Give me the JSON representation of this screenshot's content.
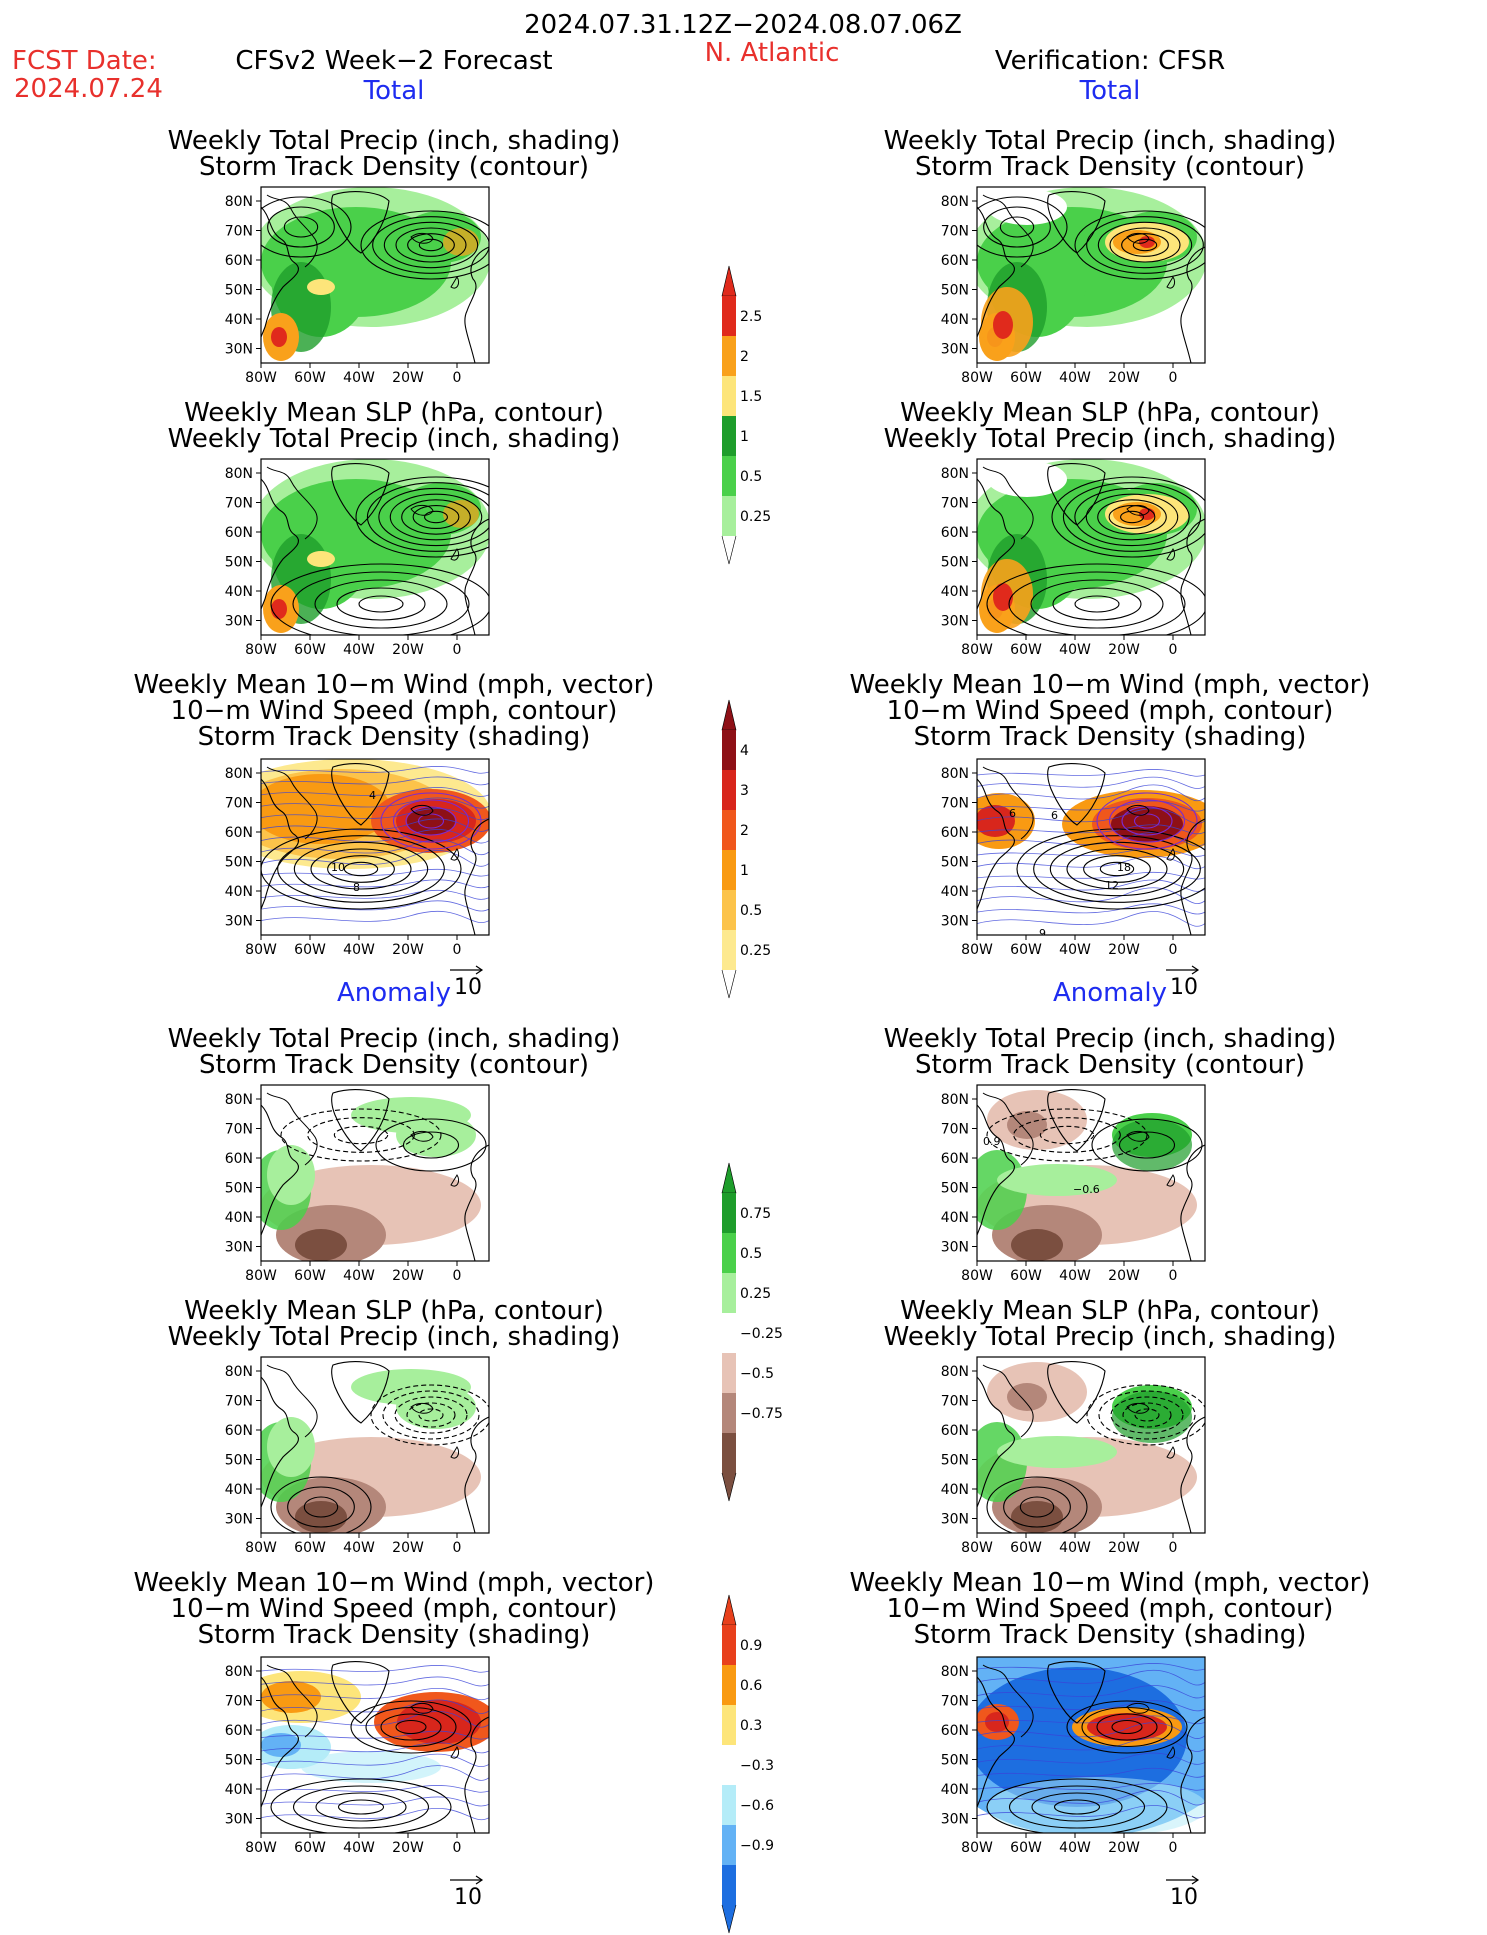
{
  "header": {
    "date_range": "2024.07.31.12Z−2024.08.07.06Z",
    "fcst_label": "FCST Date:",
    "fcst_date": "2024.07.24",
    "forecast_title": "CFSv2 Week−2 Forecast",
    "region": "N. Atlantic",
    "verification": "Verification: CFSR"
  },
  "sections": {
    "total": "Total",
    "anomaly": "Anomaly"
  },
  "titles": {
    "precip_track": [
      "Weekly Total Precip (inch, shading)",
      "Storm Track Density (contour)"
    ],
    "slp_precip": [
      "Weekly Mean SLP (hPa, contour)",
      "Weekly Total Precip (inch, shading)"
    ],
    "wind_track": [
      "Weekly Mean 10−m Wind (mph, vector)",
      "10−m Wind Speed (mph, contour)",
      "Storm Track Density (shading)"
    ]
  },
  "axes": {
    "lat_ticks": [
      "80N",
      "70N",
      "60N",
      "50N",
      "40N",
      "30N"
    ],
    "lon_ticks": [
      "80W",
      "60W",
      "40W",
      "20W",
      "0"
    ]
  },
  "vector_scale": "10",
  "colorbars": {
    "precip_total": {
      "labels": [
        "2.5",
        "2",
        "1.5",
        "1",
        "0.5",
        "0.25"
      ],
      "colors": [
        "#e02a1c",
        "#f9a11b",
        "#fde57a",
        "#1e9d2b",
        "#4ad04a",
        "#a7ef9c"
      ]
    },
    "track_total": {
      "labels": [
        "4",
        "3",
        "2",
        "1",
        "0.5",
        "0.25"
      ],
      "colors": [
        "#8e1016",
        "#d8261c",
        "#f0571c",
        "#f99a12",
        "#fcc34a",
        "#fde98f"
      ]
    },
    "precip_anom": {
      "labels": [
        "0.75",
        "0.5",
        "0.25",
        "−0.25",
        "−0.5",
        "−0.75"
      ],
      "colors": [
        "#1e9d2b",
        "#4ad04a",
        "#a7ef9c",
        "#ffffff",
        "#e7c3b6",
        "#b4877a",
        "#7b4f40"
      ]
    },
    "track_anom": {
      "labels": [
        "0.9",
        "0.6",
        "0.3",
        "−0.3",
        "−0.6",
        "−0.9"
      ],
      "colors": [
        "#e8401c",
        "#f99a12",
        "#fde57a",
        "#ffffff",
        "#b4ecf8",
        "#63b2f5",
        "#1d6ee0"
      ]
    }
  },
  "contour_labels": {
    "fc_wind_total": [
      "10",
      "8",
      "4"
    ],
    "vf_wind_total": [
      "6",
      "18",
      "12",
      "9",
      "6"
    ],
    "vf_precip_anom": [
      "0.9",
      "−0.6"
    ]
  }
}
